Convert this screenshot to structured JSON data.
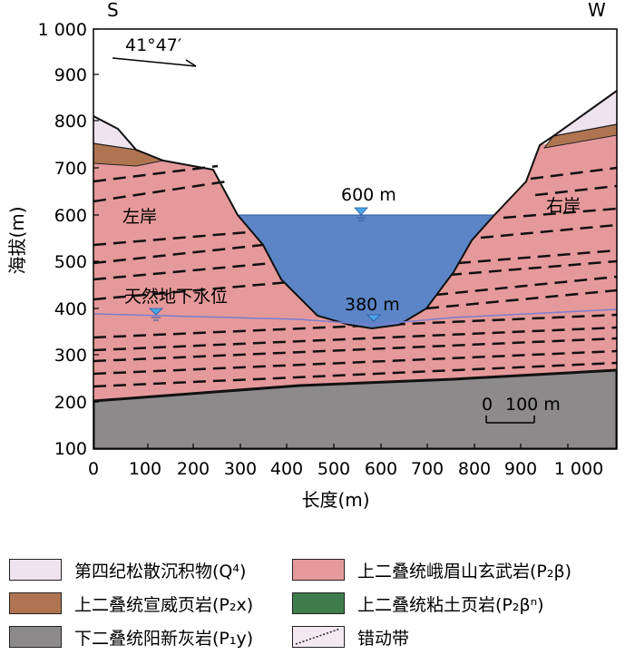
{
  "direction": {
    "left": "S",
    "right": "W"
  },
  "azimuth": "41°47′",
  "axes": {
    "ylabel": "海拔(m)",
    "xlabel": "长度(m)",
    "yticks": [
      "1 000",
      "900",
      "800",
      "700",
      "600",
      "500",
      "400",
      "300",
      "200",
      "100"
    ],
    "xticks": [
      "0",
      "100",
      "200",
      "300",
      "400",
      "500",
      "600",
      "700",
      "800",
      "900",
      "1 000"
    ]
  },
  "labels": {
    "left_bank": "左岸",
    "right_bank": "右岸",
    "groundwater": "天然地下水位",
    "water_600": "600 m",
    "water_380": "380 m",
    "scale_0": "0",
    "scale_100": "100 m"
  },
  "legend": [
    {
      "key": "q4",
      "text": "第四纪松散沉积物(Q⁴)",
      "color": "#efe3ee"
    },
    {
      "key": "p2b",
      "text": "上二叠统峨眉山玄武岩(P₂β)",
      "color": "#e6999a"
    },
    {
      "key": "p2x",
      "text": "上二叠统宣威页岩(P₂x)",
      "color": "#b07550"
    },
    {
      "key": "p2bn",
      "text": "上二叠统粘土页岩(P₂βⁿ)",
      "color": "#3f7d4c"
    },
    {
      "key": "p1y",
      "text": "下二叠统阳新灰岩(P₁y)",
      "color": "#8d8a8b"
    },
    {
      "key": "fault",
      "text": "错动带",
      "color": "#f4e9f1"
    }
  ],
  "colors": {
    "water": "#5b85c7",
    "basalt": "#e6999a",
    "shale": "#b07550",
    "limestone": "#8d8a8b",
    "quaternary": "#efe3ee",
    "groundwater_line": "#7a7ed0"
  }
}
